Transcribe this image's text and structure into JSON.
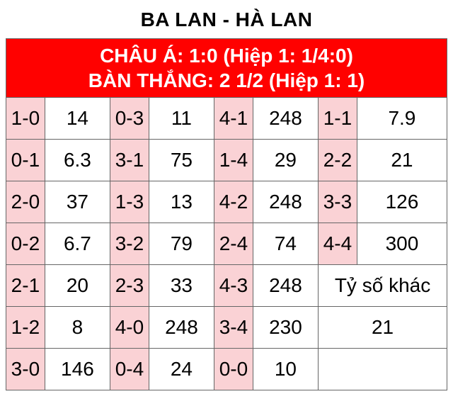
{
  "title": "BA LAN - HÀ LAN",
  "title_fontsize": 28,
  "title_color": "#000000",
  "header": {
    "line1": "CHÂU Á: 1:0 (Hiệp 1: 1/4:0)",
    "line2": "BÀN THẮNG: 2 1/2 (Hiệp 1: 1)",
    "bg": "#ff0100",
    "color": "#ffffff",
    "fontsize": 28,
    "border_color": "#666666"
  },
  "table": {
    "border_color": "#666666",
    "border_width": 1,
    "score_bg": "#fad2d5",
    "odds_bg": "#ffffff",
    "merged_bg": "#ffffff",
    "font_color": "#000000",
    "fontsize": 28,
    "col_widths_pct": [
      8.8,
      14.8,
      8.8,
      14.8,
      8.8,
      14.8,
      8.8,
      20.4
    ],
    "rows": [
      [
        {
          "t": "s",
          "v": "1-0"
        },
        {
          "t": "o",
          "v": "14"
        },
        {
          "t": "s",
          "v": "0-3"
        },
        {
          "t": "o",
          "v": "11"
        },
        {
          "t": "s",
          "v": "4-1"
        },
        {
          "t": "o",
          "v": "248"
        },
        {
          "t": "s",
          "v": "1-1"
        },
        {
          "t": "o",
          "v": "7.9"
        }
      ],
      [
        {
          "t": "s",
          "v": "0-1"
        },
        {
          "t": "o",
          "v": "6.3"
        },
        {
          "t": "s",
          "v": "3-1"
        },
        {
          "t": "o",
          "v": "75"
        },
        {
          "t": "s",
          "v": "1-4"
        },
        {
          "t": "o",
          "v": "29"
        },
        {
          "t": "s",
          "v": "2-2"
        },
        {
          "t": "o",
          "v": "21"
        }
      ],
      [
        {
          "t": "s",
          "v": "2-0"
        },
        {
          "t": "o",
          "v": "37"
        },
        {
          "t": "s",
          "v": "1-3"
        },
        {
          "t": "o",
          "v": "13"
        },
        {
          "t": "s",
          "v": "4-2"
        },
        {
          "t": "o",
          "v": "248"
        },
        {
          "t": "s",
          "v": "3-3"
        },
        {
          "t": "o",
          "v": "126"
        }
      ],
      [
        {
          "t": "s",
          "v": "0-2"
        },
        {
          "t": "o",
          "v": "6.7"
        },
        {
          "t": "s",
          "v": "3-2"
        },
        {
          "t": "o",
          "v": "79"
        },
        {
          "t": "s",
          "v": "2-4"
        },
        {
          "t": "o",
          "v": "74"
        },
        {
          "t": "s",
          "v": "4-4"
        },
        {
          "t": "o",
          "v": "300"
        }
      ],
      [
        {
          "t": "s",
          "v": "2-1"
        },
        {
          "t": "o",
          "v": "20"
        },
        {
          "t": "s",
          "v": "2-3"
        },
        {
          "t": "o",
          "v": "33"
        },
        {
          "t": "s",
          "v": "4-3"
        },
        {
          "t": "o",
          "v": "248"
        },
        {
          "t": "m",
          "v": "Tỷ số khác",
          "span": 2
        }
      ],
      [
        {
          "t": "s",
          "v": "1-2"
        },
        {
          "t": "o",
          "v": "8"
        },
        {
          "t": "s",
          "v": "4-0"
        },
        {
          "t": "o",
          "v": "248"
        },
        {
          "t": "s",
          "v": "3-4"
        },
        {
          "t": "o",
          "v": "230"
        },
        {
          "t": "m",
          "v": "21",
          "span": 2
        }
      ],
      [
        {
          "t": "s",
          "v": "3-0"
        },
        {
          "t": "o",
          "v": "146"
        },
        {
          "t": "s",
          "v": "0-4"
        },
        {
          "t": "o",
          "v": "24"
        },
        {
          "t": "s",
          "v": "0-0"
        },
        {
          "t": "o",
          "v": "10"
        },
        {
          "t": "m",
          "v": "",
          "span": 2
        }
      ]
    ]
  }
}
